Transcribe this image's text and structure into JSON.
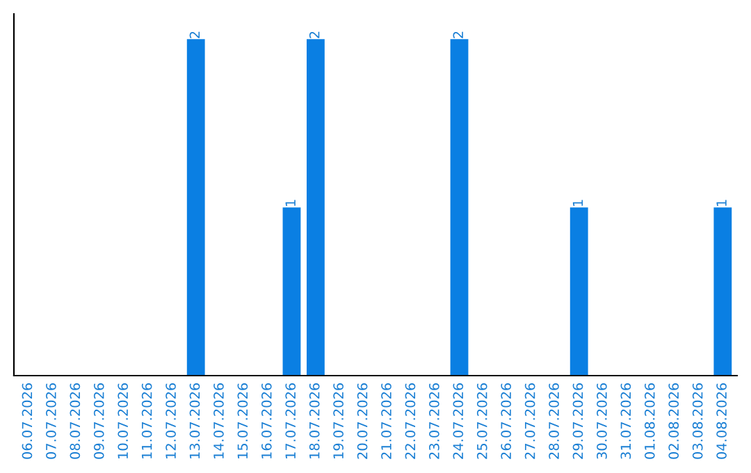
{
  "chart_data": {
    "type": "bar",
    "categories": [
      "06.07.2026",
      "07.07.2026",
      "08.07.2026",
      "09.07.2026",
      "10.07.2026",
      "11.07.2026",
      "12.07.2026",
      "13.07.2026",
      "14.07.2026",
      "15.07.2026",
      "16.07.2026",
      "17.07.2026",
      "18.07.2026",
      "19.07.2026",
      "20.07.2026",
      "21.07.2026",
      "22.07.2026",
      "23.07.2026",
      "24.07.2026",
      "25.07.2026",
      "26.07.2026",
      "27.07.2026",
      "28.07.2026",
      "29.07.2026",
      "30.07.2026",
      "31.07.2026",
      "01.08.2026",
      "02.08.2026",
      "03.08.2026",
      "04.08.2026"
    ],
    "values": [
      0,
      0,
      0,
      0,
      0,
      0,
      0,
      2,
      0,
      0,
      0,
      1,
      2,
      0,
      0,
      0,
      0,
      0,
      2,
      0,
      0,
      0,
      0,
      1,
      0,
      0,
      0,
      0,
      0,
      1
    ],
    "value_labels": [
      null,
      null,
      null,
      null,
      null,
      null,
      null,
      "2",
      null,
      null,
      null,
      "1",
      "2",
      null,
      null,
      null,
      null,
      null,
      "2",
      null,
      null,
      null,
      null,
      "1",
      null,
      null,
      null,
      null,
      null,
      "1"
    ],
    "color": "#0a7fe3",
    "ylim": [
      0,
      2.15
    ],
    "tick_labels": "x",
    "grid": false
  }
}
